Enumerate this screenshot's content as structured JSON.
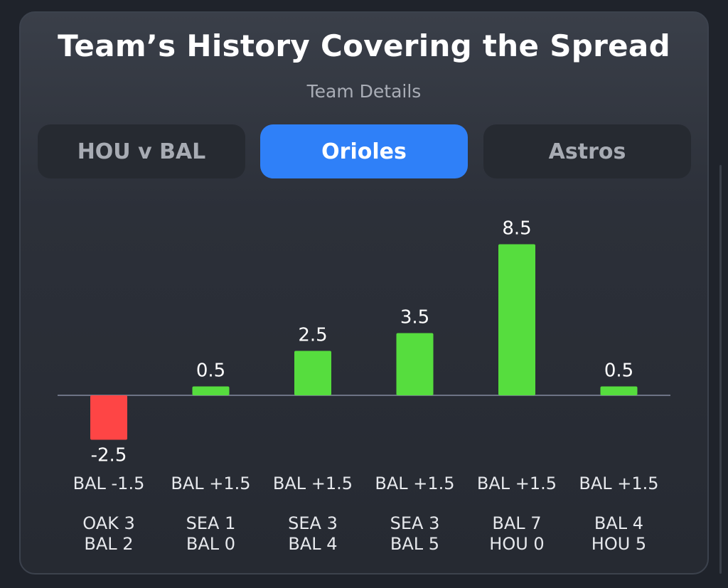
{
  "header": {
    "title": "Team’s History Covering the Spread",
    "subtitle": "Team Details"
  },
  "tabs": [
    {
      "label": "HOU v BAL",
      "active": false
    },
    {
      "label": "Orioles",
      "active": true
    },
    {
      "label": "Astros",
      "active": false
    }
  ],
  "colors": {
    "positive": "#56dd3e",
    "negative": "#fe4545",
    "accent": "#2f80f8",
    "baseline": "#6d7385"
  },
  "chart_data": {
    "type": "bar",
    "categories": [
      {
        "line": "BAL -1.5",
        "score": [
          "OAK 3",
          "BAL 2"
        ]
      },
      {
        "line": "BAL +1.5",
        "score": [
          "SEA 1",
          "BAL 0"
        ]
      },
      {
        "line": "BAL +1.5",
        "score": [
          "SEA 3",
          "BAL 4"
        ]
      },
      {
        "line": "BAL +1.5",
        "score": [
          "SEA 3",
          "BAL 5"
        ]
      },
      {
        "line": "BAL +1.5",
        "score": [
          "BAL 7",
          "HOU 0"
        ]
      },
      {
        "line": "BAL +1.5",
        "score": [
          "BAL 4",
          "HOU 5"
        ]
      }
    ],
    "values": [
      -2.5,
      0.5,
      2.5,
      3.5,
      8.5,
      0.5
    ],
    "value_labels": [
      "-2.5",
      "0.5",
      "2.5",
      "3.5",
      "8.5",
      "0.5"
    ]
  }
}
